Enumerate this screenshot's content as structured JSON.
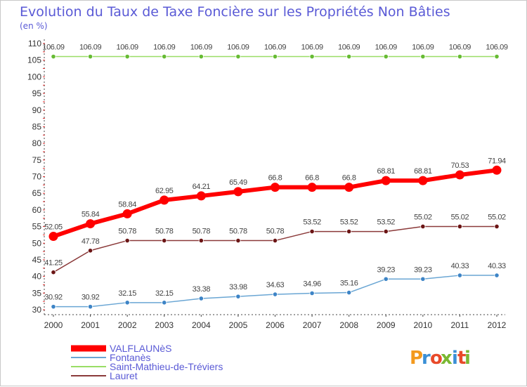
{
  "chart_data": {
    "type": "line",
    "title": "Evolution du Taux de Taxe Foncière sur les Propriétés Non Bâties",
    "subtitle": "(en %)",
    "xlabel": "",
    "ylabel": "",
    "ylim": [
      30,
      110
    ],
    "ytick_step": 5,
    "y_tick_labels": [
      "30",
      "35",
      "40",
      "45",
      "50",
      "55",
      "60",
      "65",
      "70",
      "75",
      "80",
      "85",
      "90",
      "95",
      "100",
      "105",
      "110"
    ],
    "categories": [
      "2000",
      "2001",
      "2002",
      "2003",
      "2004",
      "2005",
      "2006",
      "2007",
      "2008",
      "2009",
      "2010",
      "2011",
      "2012"
    ],
    "series": [
      {
        "name": "VALFLAUNèS",
        "color": "#ff0000",
        "emphasis": true,
        "values": [
          52.05,
          55.84,
          58.84,
          62.95,
          64.21,
          65.49,
          66.8,
          66.8,
          66.8,
          68.81,
          68.81,
          70.53,
          71.94
        ],
        "labels": [
          "52.05",
          "55.84",
          "58.84",
          "62.95",
          "64.21",
          "65.49",
          "66.8",
          "66.8",
          "66.8",
          "68.81",
          "68.81",
          "70.53",
          "71.94"
        ]
      },
      {
        "name": "Fontanès",
        "color": "#6aa6d4",
        "marker_color": "#3d84c6",
        "values": [
          30.92,
          30.92,
          32.15,
          32.15,
          33.38,
          33.98,
          34.63,
          34.96,
          35.16,
          39.23,
          39.23,
          40.33,
          40.33
        ],
        "labels": [
          "30.92",
          "30.92",
          "32.15",
          "32.15",
          "33.38",
          "33.98",
          "34.63",
          "34.96",
          "35.16",
          "39.23",
          "39.23",
          "40.33",
          "40.33"
        ]
      },
      {
        "name": "Saint-Mathieu-de-Tréviers",
        "color": "#99dd66",
        "marker_color": "#66bb33",
        "values": [
          106.09,
          106.09,
          106.09,
          106.09,
          106.09,
          106.09,
          106.09,
          106.09,
          106.09,
          106.09,
          106.09,
          106.09,
          106.09
        ],
        "labels": [
          "106.09",
          "106.09",
          "106.09",
          "106.09",
          "106.09",
          "106.09",
          "106.09",
          "106.09",
          "106.09",
          "106.09",
          "106.09",
          "106.09",
          "106.09"
        ]
      },
      {
        "name": "Lauret",
        "color": "#8b3a3a",
        "marker_color": "#6b1515",
        "values": [
          41.25,
          47.78,
          50.78,
          50.78,
          50.78,
          50.78,
          50.78,
          53.52,
          53.52,
          53.52,
          55.02,
          55.02,
          55.02
        ],
        "labels": [
          "41.25",
          "47.78",
          "50.78",
          "50.78",
          "50.78",
          "50.78",
          "50.78",
          "53.52",
          "53.52",
          "53.52",
          "55.02",
          "55.02",
          "55.02"
        ]
      }
    ],
    "grid": false,
    "legend_position": "bottom-left"
  },
  "logo": {
    "text": "Proxiti",
    "letter_colors": [
      "#f39a1e",
      "#3a8fd6",
      "#e84a2a",
      "#7ab832",
      "#3a8fd6",
      "#e84a2a",
      "#7ab832"
    ]
  },
  "colors": {
    "title": "#5a5ad6",
    "axis": "#444444",
    "tick_label": "#333333",
    "data_label": "#444444"
  }
}
